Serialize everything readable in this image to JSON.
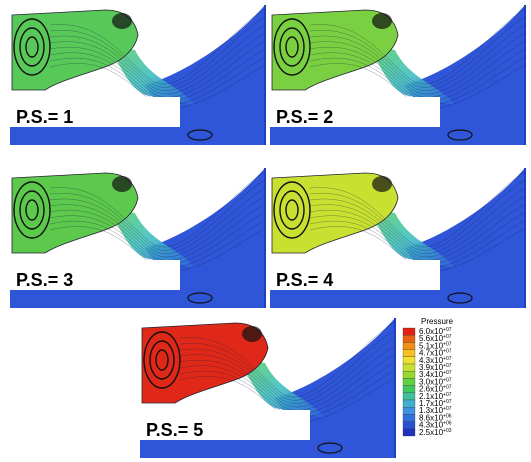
{
  "panels": [
    {
      "label": "P.S.= 1"
    },
    {
      "label": "P.S.= 2"
    },
    {
      "label": "P.S.= 3"
    },
    {
      "label": "P.S.= 4"
    },
    {
      "label": "P.S.= 5"
    }
  ],
  "legend": {
    "title": "Pressure",
    "labels": [
      {
        "base": "6.0x10",
        "exp": "+07"
      },
      {
        "base": "5.6x10",
        "exp": "+07"
      },
      {
        "base": "5.1x10",
        "exp": "+07"
      },
      {
        "base": "4.7x10",
        "exp": "+07"
      },
      {
        "base": "4.3x10",
        "exp": "+07"
      },
      {
        "base": "3.9x10",
        "exp": "+07"
      },
      {
        "base": "3.4x10",
        "exp": "+07"
      },
      {
        "base": "3.0x10",
        "exp": "+07"
      },
      {
        "base": "2.6x10",
        "exp": "+07"
      },
      {
        "base": "2.1x10",
        "exp": "+07"
      },
      {
        "base": "1.7x10",
        "exp": "+07"
      },
      {
        "base": "1.3x10",
        "exp": "+07"
      },
      {
        "base": "8.6x10",
        "exp": "+06"
      },
      {
        "base": "4.3x10",
        "exp": "+06"
      },
      {
        "base": "2.5x10",
        "exp": "+03"
      }
    ]
  }
}
